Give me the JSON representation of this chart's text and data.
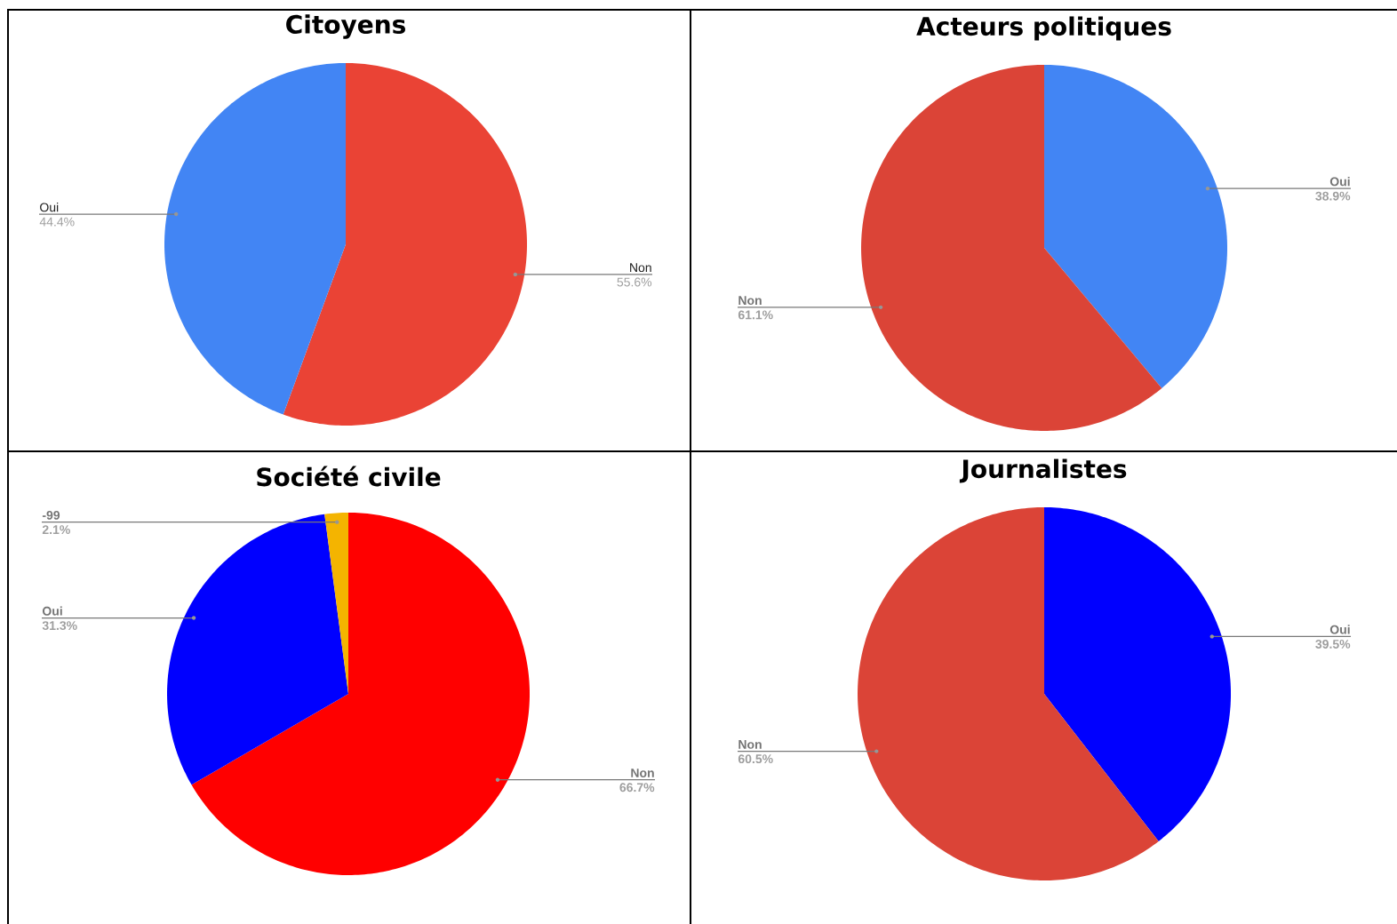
{
  "chart_data": [
    {
      "type": "pie",
      "title": "Citoyens",
      "categories": [
        "Non",
        "Oui"
      ],
      "values": [
        55.6,
        44.4
      ],
      "colors": [
        "#ea4335",
        "#4285f4"
      ],
      "value_labels": [
        "55.6%",
        "44.4%"
      ]
    },
    {
      "type": "pie",
      "title": "Acteurs politiques",
      "categories": [
        "Oui",
        "Non"
      ],
      "values": [
        38.9,
        61.1
      ],
      "colors": [
        "#4285f4",
        "#db4437"
      ],
      "value_labels": [
        "38.9%",
        "61.1%"
      ]
    },
    {
      "type": "pie",
      "title": "Société civile",
      "categories": [
        "Non",
        "Oui",
        "-99"
      ],
      "values": [
        66.7,
        31.3,
        2.1
      ],
      "colors": [
        "#ff0000",
        "#0000ff",
        "#f4b400"
      ],
      "value_labels": [
        "66.7%",
        "31.3%",
        "2.1%"
      ]
    },
    {
      "type": "pie",
      "title": "Journalistes",
      "categories": [
        "Oui",
        "Non"
      ],
      "values": [
        39.5,
        60.5
      ],
      "colors": [
        "#0000ff",
        "#db4437"
      ],
      "value_labels": [
        "39.5%",
        "60.5%"
      ]
    }
  ]
}
